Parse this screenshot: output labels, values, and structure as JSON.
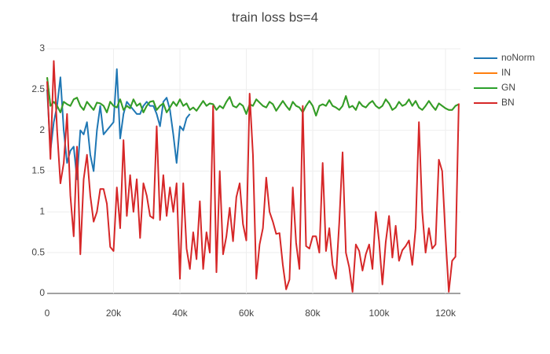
{
  "chart_data": {
    "type": "line",
    "title": "train loss bs=4",
    "x": [
      0,
      1000,
      2000,
      3000,
      4000,
      5000,
      6000,
      7000,
      8000,
      9000,
      10000,
      11000,
      12000,
      13000,
      14000,
      15000,
      16000,
      17000,
      18000,
      19000,
      20000,
      21000,
      22000,
      23000,
      24000,
      25000,
      26000,
      27000,
      28000,
      29000,
      30000,
      31000,
      32000,
      33000,
      34000,
      35000,
      36000,
      37000,
      38000,
      39000,
      40000,
      41000,
      42000,
      43000,
      44000,
      45000,
      46000,
      47000,
      48000,
      49000,
      50000,
      51000,
      52000,
      53000,
      54000,
      55000,
      56000,
      57000,
      58000,
      59000,
      60000,
      61000,
      62000,
      63000,
      64000,
      65000,
      66000,
      67000,
      68000,
      69000,
      70000,
      71000,
      72000,
      73000,
      74000,
      75000,
      76000,
      77000,
      78000,
      79000,
      80000,
      81000,
      82000,
      83000,
      84000,
      85000,
      86000,
      87000,
      88000,
      89000,
      90000,
      91000,
      92000,
      93000,
      94000,
      95000,
      96000,
      97000,
      98000,
      99000,
      100000,
      101000,
      102000,
      103000,
      104000,
      105000,
      106000,
      107000,
      108000,
      109000,
      110000,
      111000,
      112000,
      113000,
      114000,
      115000,
      116000,
      117000,
      118000,
      119000,
      120000,
      121000,
      122000,
      123000,
      124000
    ],
    "series": [
      {
        "name": "noNorm",
        "color": "#1f77b4",
        "values": [
          2.5,
          1.75,
          2.1,
          2.3,
          2.65,
          2.0,
          1.6,
          1.75,
          1.8,
          1.4,
          2.0,
          1.95,
          2.1,
          1.7,
          1.5,
          2.0,
          2.3,
          1.95,
          2.0,
          2.05,
          2.1,
          2.75,
          1.9,
          2.2,
          2.35,
          2.3,
          2.25,
          2.2,
          2.2,
          2.3,
          2.35,
          2.3,
          2.3,
          2.2,
          2.05,
          2.35,
          2.4,
          2.25,
          1.95,
          1.6,
          2.05,
          2.0,
          2.15,
          2.2,
          null,
          null,
          null,
          null,
          null,
          null,
          null,
          null,
          null,
          null,
          null,
          null,
          null,
          null,
          null,
          null,
          null,
          null,
          null,
          null,
          null,
          null,
          null,
          null,
          null,
          null,
          null,
          null,
          null,
          null,
          null,
          null,
          null,
          null,
          null,
          null,
          null,
          null,
          null,
          null,
          null,
          null,
          null,
          null,
          null,
          null,
          null,
          null,
          null,
          null,
          null,
          null,
          null,
          null,
          null,
          null,
          null,
          null,
          null,
          null,
          null,
          null,
          null,
          null,
          null,
          null,
          null,
          null,
          null,
          null,
          null,
          null,
          null,
          null,
          null,
          null,
          null,
          null,
          null,
          null,
          null
        ]
      },
      {
        "name": "IN",
        "color": "#ff7f0e",
        "values": [
          2.65,
          2.3,
          2.35,
          2.3,
          2.22,
          2.35,
          2.32,
          2.3,
          2.38,
          2.4,
          2.3,
          2.25,
          2.35,
          2.3,
          2.25,
          2.34,
          2.33,
          2.3,
          2.22,
          2.35,
          2.3,
          2.28,
          2.38,
          2.25,
          2.3,
          2.27,
          2.38,
          2.3,
          2.33,
          2.22,
          2.3,
          2.35,
          2.36,
          2.25,
          2.3,
          2.33,
          2.22,
          2.28,
          2.35,
          2.3,
          2.38,
          2.3,
          2.33,
          2.25,
          2.28,
          2.24,
          2.3,
          2.36,
          2.3,
          2.33,
          2.32,
          2.25,
          2.3,
          2.27,
          2.35,
          2.41,
          2.3,
          2.28,
          2.33,
          2.3,
          2.2,
          2.32,
          2.3,
          2.38,
          2.34,
          2.3,
          2.28,
          2.35,
          2.32,
          2.24,
          2.3,
          2.36,
          2.3,
          2.25,
          2.35,
          2.3,
          2.28,
          2.22,
          2.3,
          2.36,
          2.3,
          2.18,
          2.3,
          2.32,
          2.3,
          2.37,
          2.3,
          2.28,
          2.25,
          2.3,
          2.42,
          2.28,
          2.3,
          2.25,
          2.35,
          2.3,
          2.28,
          2.33,
          2.36,
          2.3,
          2.27,
          2.3,
          2.38,
          2.33,
          2.25,
          2.28,
          2.35,
          2.3,
          2.32,
          2.38,
          2.3,
          2.36,
          2.28,
          2.25,
          2.3,
          2.36,
          2.3,
          2.25,
          2.33,
          2.3,
          2.27,
          2.25,
          2.25,
          2.3,
          2.32
        ]
      },
      {
        "name": "GN",
        "color": "#2ca02c",
        "values": [
          2.65,
          2.3,
          2.35,
          2.3,
          2.22,
          2.35,
          2.32,
          2.3,
          2.38,
          2.4,
          2.3,
          2.25,
          2.35,
          2.3,
          2.25,
          2.34,
          2.33,
          2.3,
          2.22,
          2.35,
          2.3,
          2.28,
          2.38,
          2.25,
          2.3,
          2.27,
          2.38,
          2.3,
          2.33,
          2.22,
          2.3,
          2.35,
          2.36,
          2.25,
          2.3,
          2.33,
          2.22,
          2.28,
          2.35,
          2.3,
          2.38,
          2.3,
          2.33,
          2.25,
          2.28,
          2.24,
          2.3,
          2.36,
          2.3,
          2.33,
          2.32,
          2.25,
          2.3,
          2.27,
          2.35,
          2.41,
          2.3,
          2.28,
          2.33,
          2.3,
          2.2,
          2.32,
          2.3,
          2.38,
          2.34,
          2.3,
          2.28,
          2.35,
          2.32,
          2.24,
          2.3,
          2.36,
          2.3,
          2.25,
          2.35,
          2.3,
          2.28,
          2.22,
          2.3,
          2.36,
          2.3,
          2.18,
          2.3,
          2.32,
          2.3,
          2.37,
          2.3,
          2.28,
          2.25,
          2.3,
          2.42,
          2.28,
          2.3,
          2.25,
          2.35,
          2.3,
          2.28,
          2.33,
          2.36,
          2.3,
          2.27,
          2.3,
          2.38,
          2.33,
          2.25,
          2.28,
          2.35,
          2.3,
          2.32,
          2.38,
          2.3,
          2.36,
          2.28,
          2.25,
          2.3,
          2.36,
          2.3,
          2.25,
          2.33,
          2.3,
          2.27,
          2.25,
          2.25,
          2.3,
          2.32
        ]
      },
      {
        "name": "BN",
        "color": "#d62728",
        "values": [
          2.6,
          1.65,
          2.85,
          2.0,
          1.35,
          1.6,
          2.2,
          1.2,
          0.7,
          1.8,
          0.48,
          1.4,
          1.7,
          1.2,
          0.88,
          1.0,
          1.28,
          1.28,
          1.1,
          0.57,
          0.52,
          1.3,
          0.8,
          1.88,
          0.95,
          1.45,
          1.0,
          1.4,
          0.68,
          1.35,
          1.2,
          0.95,
          0.92,
          2.05,
          0.9,
          1.45,
          0.95,
          1.3,
          1.0,
          1.35,
          0.18,
          1.35,
          0.55,
          0.3,
          0.75,
          0.42,
          1.13,
          0.3,
          0.75,
          0.5,
          2.3,
          0.26,
          1.5,
          0.48,
          0.7,
          1.05,
          0.64,
          1.18,
          1.35,
          0.85,
          0.65,
          2.45,
          1.7,
          0.18,
          0.6,
          0.8,
          1.42,
          1.0,
          0.88,
          0.73,
          0.74,
          0.35,
          0.05,
          0.17,
          1.3,
          0.62,
          0.3,
          2.3,
          0.58,
          0.55,
          0.7,
          0.7,
          0.5,
          1.6,
          0.52,
          0.8,
          0.35,
          0.18,
          0.87,
          1.73,
          0.5,
          0.32,
          0.02,
          0.6,
          0.52,
          0.28,
          0.48,
          0.6,
          0.3,
          1.0,
          0.64,
          0.11,
          0.63,
          0.95,
          0.44,
          0.83,
          0.4,
          0.53,
          0.58,
          0.65,
          0.35,
          0.8,
          2.1,
          1.0,
          0.5,
          0.8,
          0.55,
          0.6,
          1.64,
          1.5,
          0.7,
          0.02,
          0.4,
          0.45,
          2.33
        ]
      }
    ],
    "xlim": [
      0,
      124500
    ],
    "ylim": [
      0,
      3
    ],
    "xticks": [
      0,
      {
        "value": 20000,
        "label": "20k"
      },
      {
        "value": 40000,
        "label": "40k"
      },
      {
        "value": 60000,
        "label": "60k"
      },
      {
        "value": 80000,
        "label": "80k"
      },
      {
        "value": 100000,
        "label": "100k"
      },
      {
        "value": 120000,
        "label": "120k"
      }
    ],
    "yticks": [
      0,
      0.5,
      1,
      1.5,
      2,
      2.5,
      3
    ],
    "grid": true,
    "legend": "right"
  }
}
